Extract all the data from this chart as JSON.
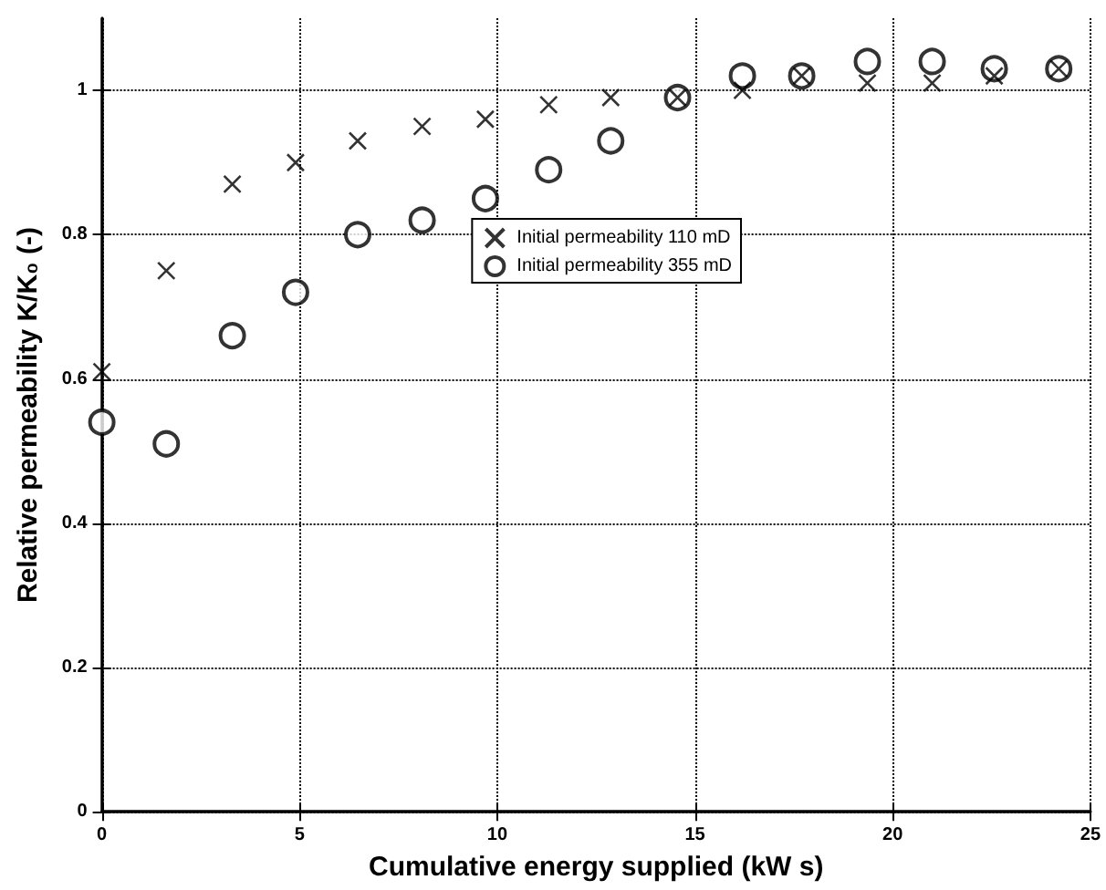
{
  "chart_data": {
    "type": "scatter",
    "xlabel": "Cumulative energy supplied (kW s)",
    "ylabel": "Relative permeability K/K₀ (-)",
    "x": [
      0,
      1.63,
      3.3,
      4.9,
      6.47,
      8.1,
      9.7,
      11.3,
      12.87,
      14.56,
      16.2,
      17.7,
      19.36,
      21.0,
      22.57,
      24.2
    ],
    "series": [
      {
        "name": "Initial permeability 110 mD",
        "color": "#000000",
        "marker": "cross",
        "values": [
          0.61,
          0.75,
          0.87,
          0.9,
          0.93,
          0.95,
          0.96,
          0.98,
          0.99,
          0.99,
          1.0,
          1.02,
          1.01,
          1.01,
          1.02,
          1.03
        ]
      },
      {
        "name": "Initial permeability 355 mD",
        "color": "#000000",
        "marker": "circle",
        "values": [
          0.54,
          0.51,
          0.66,
          0.72,
          0.8,
          0.82,
          0.85,
          0.89,
          0.93,
          0.99,
          1.02,
          1.02,
          1.04,
          1.04,
          1.03,
          1.03
        ]
      }
    ],
    "xlim": [
      0,
      25
    ],
    "xticks": [
      0,
      5,
      10,
      15,
      20,
      25
    ],
    "ylim": [
      0,
      1.1
    ],
    "yticks": [
      0,
      0.2,
      0.4,
      0.6,
      0.8,
      1
    ],
    "grid": true,
    "legend": "right"
  }
}
